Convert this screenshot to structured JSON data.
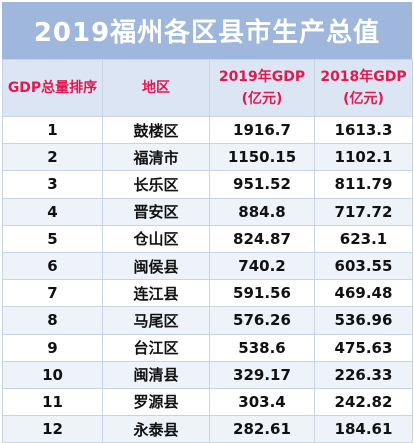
{
  "title": "2019福州各区县市生产总值",
  "headers": {
    "rank": "GDP总量排序",
    "region": "地区",
    "gdp2019_line1": "2019年GDP",
    "gdp2019_line2": "(亿元)",
    "gdp2018_line1": "2018年GDP",
    "gdp2018_line2": "(亿元)"
  },
  "rows": [
    {
      "rank": "1",
      "region": "鼓楼区",
      "gdp2019": "1916.7",
      "gdp2018": "1613.3"
    },
    {
      "rank": "2",
      "region": "福清市",
      "gdp2019": "1150.15",
      "gdp2018": "1102.1"
    },
    {
      "rank": "3",
      "region": "长乐区",
      "gdp2019": "951.52",
      "gdp2018": "811.79"
    },
    {
      "rank": "4",
      "region": "晋安区",
      "gdp2019": "884.8",
      "gdp2018": "717.72"
    },
    {
      "rank": "5",
      "region": "仓山区",
      "gdp2019": "824.87",
      "gdp2018": "623.1"
    },
    {
      "rank": "6",
      "region": "闽侯县",
      "gdp2019": "740.2",
      "gdp2018": "603.55"
    },
    {
      "rank": "7",
      "region": "连江县",
      "gdp2019": "591.56",
      "gdp2018": "469.48"
    },
    {
      "rank": "8",
      "region": "马尾区",
      "gdp2019": "576.26",
      "gdp2018": "536.96"
    },
    {
      "rank": "9",
      "region": "台江区",
      "gdp2019": "538.6",
      "gdp2018": "475.63"
    },
    {
      "rank": "10",
      "region": "闽清县",
      "gdp2019": "329.17",
      "gdp2018": "226.33"
    },
    {
      "rank": "11",
      "region": "罗源县",
      "gdp2019": "303.4",
      "gdp2018": "242.82"
    },
    {
      "rank": "12",
      "region": "永泰县",
      "gdp2019": "282.61",
      "gdp2018": "184.61"
    }
  ]
}
